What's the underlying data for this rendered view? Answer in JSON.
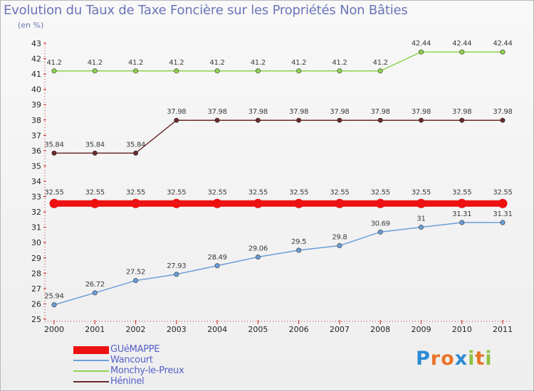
{
  "header": {
    "title": "Evolution du Taux de Taxe Foncière sur les Propriétés Non Bâties",
    "unit": "(en %)"
  },
  "chart_data": {
    "type": "line",
    "title": "Evolution du Taux de Taxe Foncière sur les Propriétés Non Bâties",
    "ylabel": "(en %)",
    "xlabel": "",
    "x": [
      "2000",
      "2001",
      "2002",
      "2003",
      "2004",
      "2005",
      "2006",
      "2007",
      "2008",
      "2009",
      "2010",
      "2011"
    ],
    "ylim": [
      25,
      43
    ],
    "yticks": [
      25,
      26,
      27,
      28,
      29,
      30,
      31,
      32,
      33,
      34,
      35,
      36,
      37,
      38,
      39,
      40,
      41,
      42,
      43
    ],
    "grid": false,
    "legend_position": "bottom-left",
    "series": [
      {
        "name": "Monchy-le-Preux",
        "color": "#8fd14f",
        "values": [
          41.2,
          41.2,
          41.2,
          41.2,
          41.2,
          41.2,
          41.2,
          41.2,
          41.2,
          42.44,
          42.44,
          42.44
        ],
        "labels": [
          "41.2",
          "41.2",
          "41.2",
          "41.2",
          "41.2",
          "41.2",
          "41.2",
          "41.2",
          "41.2",
          "42.44",
          "42.44",
          "42.44"
        ]
      },
      {
        "name": "Héninel",
        "color": "#6b2a2a",
        "values": [
          35.84,
          35.84,
          35.84,
          37.98,
          37.98,
          37.98,
          37.98,
          37.98,
          37.98,
          37.98,
          37.98,
          37.98
        ],
        "labels": [
          "35.84",
          "35.84",
          "35.84",
          "37.98",
          "37.98",
          "37.98",
          "37.98",
          "37.98",
          "37.98",
          "37.98",
          "37.98",
          "37.98"
        ]
      },
      {
        "name": "GUéMAPPE",
        "color": "#ee1111",
        "values": [
          32.55,
          32.55,
          32.55,
          32.55,
          32.55,
          32.55,
          32.55,
          32.55,
          32.55,
          32.55,
          32.55,
          32.55
        ],
        "labels": [
          "32.55",
          "32.55",
          "32.55",
          "32.55",
          "32.55",
          "32.55",
          "32.55",
          "32.55",
          "32.55",
          "32.55",
          "32.55",
          "32.55"
        ]
      },
      {
        "name": "Wancourt",
        "color": "#6a9ed8",
        "values": [
          25.94,
          26.72,
          27.52,
          27.93,
          28.49,
          29.06,
          29.5,
          29.8,
          30.69,
          31,
          31.31,
          31.31
        ],
        "labels": [
          "25.94",
          "26.72",
          "27.52",
          "27.93",
          "28.49",
          "29.06",
          "29.5",
          "29.8",
          "30.69",
          "31",
          "31.31",
          "31.31"
        ]
      }
    ]
  },
  "legend": {
    "items": [
      {
        "name": "GUéMAPPE",
        "color": "#ee1111"
      },
      {
        "name": "Wancourt",
        "color": "#6a9ed8"
      },
      {
        "name": "Monchy-le-Preux",
        "color": "#8fd14f"
      },
      {
        "name": "Héninel",
        "color": "#6b2a2a"
      }
    ]
  },
  "logo": {
    "text": "Proxiti",
    "letter_colors": [
      "#2a8ad4",
      "#e8742a",
      "#e8742a",
      "#2a8ad4",
      "#8fc13f",
      "#e8742a",
      "#8fc13f"
    ]
  }
}
